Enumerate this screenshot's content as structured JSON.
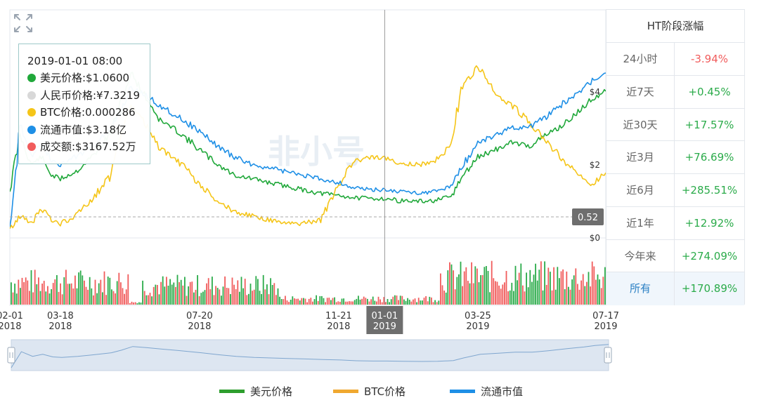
{
  "chart_data": {
    "type": "line",
    "x_ticks": [
      {
        "date": "02-01",
        "year": "2018"
      },
      {
        "date": "03-18",
        "year": "2018"
      },
      {
        "date": "07-20",
        "year": "2018"
      },
      {
        "date": "11-21",
        "year": "2018"
      },
      {
        "date": "01-01",
        "year": "2019"
      },
      {
        "date": "03-25",
        "year": "2019"
      },
      {
        "date": "07-17",
        "year": "2019"
      }
    ],
    "x_range": [
      "2018-02-01",
      "2019-07-17"
    ],
    "y_ticks": [
      "$4",
      "$2",
      "$0"
    ],
    "ylim": [
      0,
      4.6
    ],
    "current_marker": {
      "value": 0.52,
      "label": "0.52"
    },
    "crosshair_x": "2019-01-01",
    "series": [
      {
        "name": "美元价格",
        "color": "#20a83a",
        "x": [
          "2018-02-01",
          "2018-02-10",
          "2018-02-20",
          "2018-03-01",
          "2018-03-10",
          "2018-03-18",
          "2018-04-01",
          "2018-04-15",
          "2018-05-01",
          "2018-05-10",
          "2018-05-20",
          "2018-06-01",
          "2018-06-15",
          "2018-07-01",
          "2018-07-20",
          "2018-08-05",
          "2018-08-20",
          "2018-09-05",
          "2018-09-20",
          "2018-10-05",
          "2018-10-20",
          "2018-11-05",
          "2018-11-21",
          "2018-12-05",
          "2018-12-20",
          "2019-01-01",
          "2019-01-15",
          "2019-02-01",
          "2019-02-15",
          "2019-03-01",
          "2019-03-10",
          "2019-03-25",
          "2019-04-10",
          "2019-04-25",
          "2019-05-10",
          "2019-05-25",
          "2019-06-10",
          "2019-06-25",
          "2019-07-05",
          "2019-07-17"
        ],
        "values": [
          1.3,
          2.8,
          2.0,
          2.2,
          1.7,
          1.6,
          1.8,
          2.2,
          2.8,
          3.6,
          4.5,
          3.9,
          3.2,
          2.9,
          2.4,
          2.0,
          1.7,
          1.6,
          1.5,
          1.4,
          1.3,
          1.2,
          1.15,
          1.08,
          1.06,
          1.06,
          1.0,
          0.98,
          1.0,
          1.1,
          1.6,
          2.2,
          2.4,
          2.6,
          2.5,
          2.8,
          3.1,
          3.5,
          3.8,
          4.0
        ]
      },
      {
        "name": "BTC价格",
        "color": "#f5c518",
        "x": [
          "2018-02-01",
          "2018-02-10",
          "2018-02-20",
          "2018-03-01",
          "2018-03-10",
          "2018-03-18",
          "2018-04-01",
          "2018-04-15",
          "2018-05-01",
          "2018-05-10",
          "2018-05-20",
          "2018-06-01",
          "2018-06-15",
          "2018-07-01",
          "2018-07-20",
          "2018-08-05",
          "2018-08-20",
          "2018-09-05",
          "2018-09-20",
          "2018-10-05",
          "2018-10-20",
          "2018-11-05",
          "2018-11-21",
          "2018-12-05",
          "2018-12-20",
          "2019-01-01",
          "2019-01-15",
          "2019-02-01",
          "2019-02-15",
          "2019-03-01",
          "2019-03-10",
          "2019-03-25",
          "2019-04-10",
          "2019-04-25",
          "2019-05-10",
          "2019-05-25",
          "2019-06-10",
          "2019-06-25",
          "2019-07-05",
          "2019-07-17"
        ],
        "values": [
          0.000105,
          0.00014,
          0.00012,
          0.00016,
          0.00013,
          0.00012,
          0.00014,
          0.00018,
          0.00024,
          0.00034,
          0.00042,
          0.00038,
          0.00031,
          0.00028,
          0.00022,
          0.00018,
          0.00015,
          0.00014,
          0.00013,
          0.00012,
          0.00012,
          0.00013,
          0.00022,
          0.00028,
          0.00029,
          0.000286,
          0.000275,
          0.00027,
          0.00028,
          0.00032,
          0.00046,
          0.00052,
          0.00045,
          0.00042,
          0.00038,
          0.00033,
          0.00028,
          0.00024,
          0.00022,
          0.00025
        ]
      },
      {
        "name": "流通市值",
        "color": "#1e8fe6",
        "x": [
          "2018-02-01",
          "2018-02-10",
          "2018-02-20",
          "2018-03-01",
          "2018-03-10",
          "2018-03-18",
          "2018-04-01",
          "2018-04-15",
          "2018-05-01",
          "2018-05-10",
          "2018-05-20",
          "2018-06-01",
          "2018-06-15",
          "2018-07-01",
          "2018-07-20",
          "2018-08-05",
          "2018-08-20",
          "2018-09-05",
          "2018-09-20",
          "2018-10-05",
          "2018-10-20",
          "2018-11-05",
          "2018-11-21",
          "2018-12-05",
          "2018-12-20",
          "2019-01-01",
          "2019-01-15",
          "2019-02-01",
          "2019-02-15",
          "2019-03-01",
          "2019-03-10",
          "2019-03-25",
          "2019-04-10",
          "2019-04-25",
          "2019-05-10",
          "2019-05-25",
          "2019-06-10",
          "2019-06-25",
          "2019-07-05",
          "2019-07-17"
        ],
        "values": [
          0.0,
          3.1,
          2.2,
          2.6,
          2.1,
          2.0,
          2.2,
          2.5,
          2.9,
          3.4,
          4.1,
          3.9,
          3.6,
          3.3,
          2.9,
          2.5,
          2.2,
          2.0,
          1.9,
          1.8,
          1.7,
          1.6,
          1.5,
          1.35,
          1.3,
          1.3,
          1.25,
          1.22,
          1.25,
          1.4,
          1.9,
          2.6,
          2.8,
          3.0,
          3.0,
          3.3,
          3.7,
          4.0,
          4.3,
          4.5
        ]
      }
    ],
    "volume_colors": {
      "up": "#2bab4a",
      "down": "#f15c5c"
    },
    "watermark": "非小号"
  },
  "tooltip": {
    "title": "2019-01-01 08:00",
    "rows": [
      {
        "text": "美元价格:$1.0600",
        "color": "#20a83a"
      },
      {
        "text": "人民币价格:¥7.3219",
        "color": "#d8d8d8"
      },
      {
        "text": "BTC价格:0.000286",
        "color": "#f5c518"
      },
      {
        "text": "流通市值:$3.18亿",
        "color": "#1e8fe6"
      },
      {
        "text": "成交额:$3167.52万",
        "color": "#f15c5c"
      }
    ]
  },
  "stats": {
    "title": "HT阶段涨幅",
    "rows": [
      {
        "label": "24小时",
        "value": "-3.94%",
        "dir": "neg"
      },
      {
        "label": "近7天",
        "value": "+0.45%",
        "dir": "pos"
      },
      {
        "label": "近30天",
        "value": "+17.57%",
        "dir": "pos"
      },
      {
        "label": "近3月",
        "value": "+76.69%",
        "dir": "pos"
      },
      {
        "label": "近6月",
        "value": "+285.51%",
        "dir": "pos"
      },
      {
        "label": "近1年",
        "value": "+12.92%",
        "dir": "pos"
      },
      {
        "label": "今年来",
        "value": "+274.09%",
        "dir": "pos"
      },
      {
        "label": "所有",
        "value": "+170.89%",
        "dir": "pos"
      }
    ]
  },
  "legend": [
    {
      "label": "美元价格",
      "color": "#2e9e2e"
    },
    {
      "label": "BTC价格",
      "color": "#f0a830"
    },
    {
      "label": "流通市值",
      "color": "#1e8fe6"
    }
  ]
}
